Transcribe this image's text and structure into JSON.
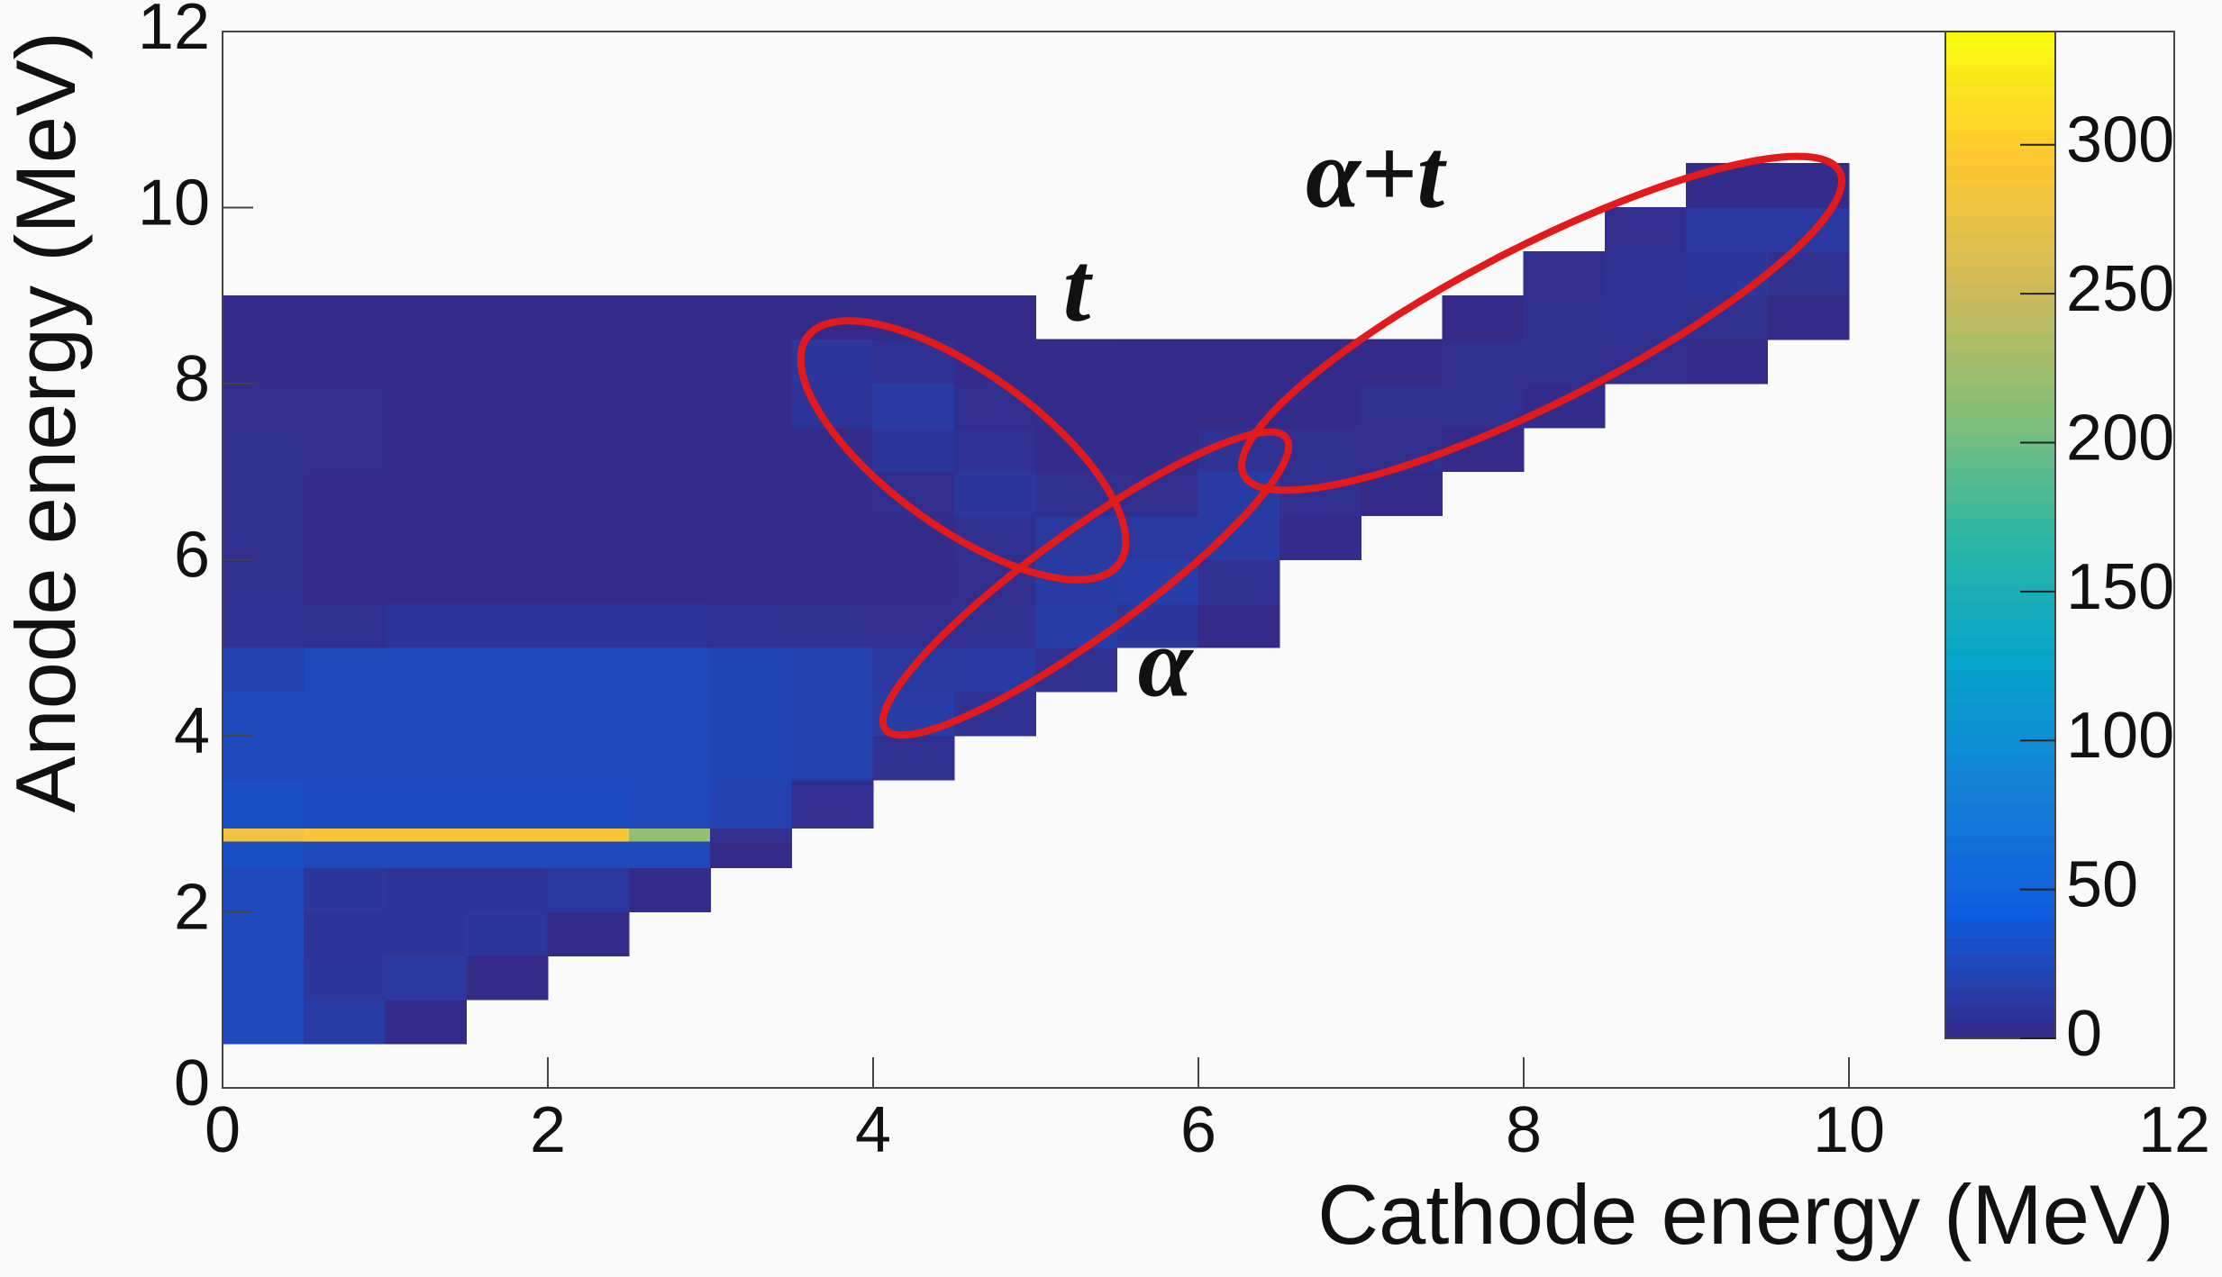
{
  "chart_data": {
    "type": "heatmap",
    "xlabel": "Cathode energy (MeV)",
    "ylabel": "Anode energy (MeV)",
    "xlim": [
      0,
      12
    ],
    "ylim": [
      0,
      12
    ],
    "xticks": [
      0,
      2,
      4,
      6,
      8,
      10,
      12
    ],
    "yticks": [
      0,
      2,
      4,
      6,
      8,
      10,
      12
    ],
    "zlim": [
      0,
      338
    ],
    "zticks": [
      0,
      50,
      100,
      150,
      200,
      250,
      300
    ],
    "palette": [
      "#352a87",
      "#0f5cdd",
      "#1481d6",
      "#06a4ca",
      "#2eb7a4",
      "#87bf77",
      "#d1bb59",
      "#fec832",
      "#f9fb0e"
    ],
    "xbins": [
      0,
      0.5,
      1,
      1.5,
      2,
      2.5,
      3,
      3.5,
      4,
      4.5,
      5,
      5.5,
      6,
      6.5,
      7,
      7.5,
      8,
      8.5,
      9,
      9.5,
      10
    ],
    "ybins": [
      0.5,
      1,
      1.5,
      2,
      2.5,
      2.8,
      2.95,
      3.5,
      4,
      4.5,
      5,
      5.5,
      6,
      6.5,
      7,
      7.5,
      8,
      8.5,
      9,
      9.5,
      10,
      10.5
    ],
    "z": [
      [
        25,
        15,
        1,
        0,
        0,
        0,
        0,
        0,
        0,
        0,
        0,
        0,
        0,
        0,
        0,
        0,
        0,
        0,
        0,
        0
      ],
      [
        25,
        10,
        12,
        1,
        0,
        0,
        0,
        0,
        0,
        0,
        0,
        0,
        0,
        0,
        0,
        0,
        0,
        0,
        0,
        0
      ],
      [
        25,
        8,
        8,
        10,
        1,
        0,
        0,
        0,
        0,
        0,
        0,
        0,
        0,
        0,
        0,
        0,
        0,
        0,
        0,
        0
      ],
      [
        25,
        10,
        8,
        8,
        12,
        2,
        0,
        0,
        0,
        0,
        0,
        0,
        0,
        0,
        0,
        0,
        0,
        0,
        0,
        0
      ],
      [
        30,
        25,
        25,
        25,
        25,
        25,
        1,
        0,
        0,
        0,
        0,
        0,
        0,
        0,
        0,
        0,
        0,
        0,
        0,
        0
      ],
      [
        280,
        290,
        290,
        290,
        290,
        220,
        5,
        0,
        0,
        0,
        0,
        0,
        0,
        0,
        0,
        0,
        0,
        0,
        0,
        0
      ],
      [
        30,
        28,
        28,
        28,
        28,
        25,
        20,
        3,
        0,
        0,
        0,
        0,
        0,
        0,
        0,
        0,
        0,
        0,
        0,
        0
      ],
      [
        25,
        25,
        25,
        25,
        25,
        25,
        22,
        20,
        4,
        0,
        0,
        0,
        0,
        0,
        0,
        0,
        0,
        0,
        0,
        0
      ],
      [
        25,
        25,
        25,
        25,
        25,
        25,
        22,
        20,
        15,
        6,
        0,
        0,
        0,
        0,
        0,
        0,
        0,
        0,
        0,
        0
      ],
      [
        20,
        25,
        25,
        25,
        25,
        25,
        22,
        20,
        12,
        14,
        5,
        0,
        0,
        0,
        0,
        0,
        0,
        0,
        0,
        0
      ],
      [
        6,
        5,
        8,
        8,
        8,
        8,
        6,
        4,
        3,
        5,
        15,
        10,
        1,
        0,
        0,
        0,
        0,
        0,
        0,
        0
      ],
      [
        4,
        2,
        2,
        2,
        2,
        2,
        2,
        2,
        2,
        3,
        14,
        16,
        4,
        0,
        0,
        0,
        0,
        0,
        0,
        0
      ],
      [
        4,
        2,
        2,
        2,
        2,
        2,
        2,
        2,
        2,
        4,
        12,
        12,
        14,
        2,
        0,
        0,
        0,
        0,
        0,
        0
      ],
      [
        4,
        2,
        2,
        2,
        2,
        2,
        2,
        2,
        3,
        10,
        4,
        3,
        14,
        5,
        1,
        0,
        0,
        0,
        0,
        0
      ],
      [
        4,
        3,
        2,
        2,
        2,
        2,
        2,
        2,
        10,
        6,
        2,
        2,
        6,
        4,
        3,
        1,
        0,
        0,
        0,
        0
      ],
      [
        3,
        3,
        2,
        2,
        2,
        2,
        2,
        8,
        14,
        3,
        2,
        2,
        1,
        2,
        4,
        4,
        2,
        0,
        0,
        0
      ],
      [
        2,
        2,
        2,
        2,
        2,
        2,
        2,
        10,
        6,
        2,
        2,
        1,
        1,
        1,
        1,
        4,
        5,
        3,
        1,
        0
      ],
      [
        1,
        1,
        1,
        1,
        1,
        1,
        1,
        1,
        1,
        1,
        0,
        0,
        0,
        0,
        0,
        1,
        4,
        6,
        4,
        1
      ],
      [
        0,
        0,
        0,
        0,
        0,
        0,
        0,
        0,
        0,
        0,
        0,
        0,
        0,
        0,
        0,
        0,
        3,
        6,
        10,
        5
      ],
      [
        0,
        0,
        0,
        0,
        0,
        0,
        0,
        0,
        0,
        0,
        0,
        0,
        0,
        0,
        0,
        0,
        0,
        3,
        12,
        12
      ],
      [
        0,
        0,
        0,
        0,
        0,
        0,
        0,
        0,
        0,
        0,
        0,
        0,
        0,
        0,
        0,
        0,
        0,
        0,
        2,
        2
      ]
    ],
    "annotations": [
      {
        "text": "α+t",
        "color": "#e31a1c"
      },
      {
        "text": "t",
        "color": "#e31a1c"
      },
      {
        "text": "α",
        "color": "#e31a1c"
      }
    ]
  }
}
